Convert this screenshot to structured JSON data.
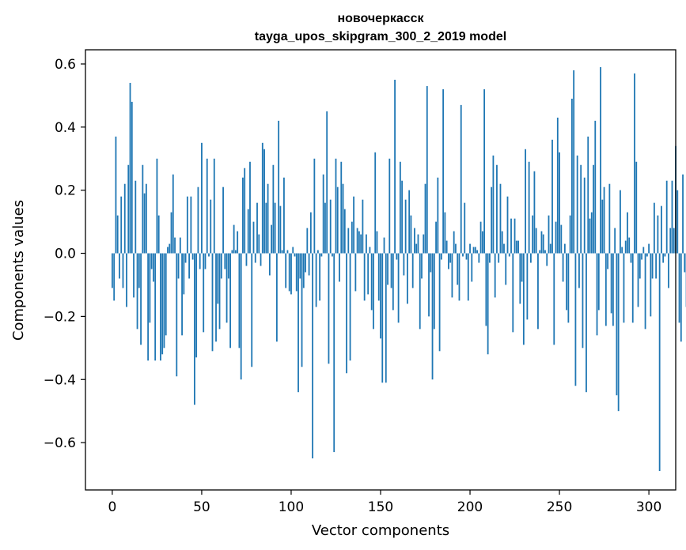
{
  "chart_data": {
    "type": "bar",
    "title_lines": [
      "новочеркасск",
      "tayga_upos_skipgram_300_2_2019 model"
    ],
    "xlabel": "Vector components",
    "ylabel": "Components values",
    "xlim": [
      -15,
      315
    ],
    "ylim": [
      -0.75,
      0.645
    ],
    "x_ticks": [
      0,
      50,
      100,
      150,
      200,
      250,
      300
    ],
    "x_tick_labels": [
      "0",
      "50",
      "100",
      "150",
      "200",
      "250",
      "300"
    ],
    "y_ticks": [
      -0.6,
      -0.4,
      -0.2,
      0.0,
      0.2,
      0.4,
      0.6
    ],
    "y_tick_labels": [
      "−0.6",
      "−0.4",
      "−0.2",
      "0.0",
      "0.2",
      "0.4",
      "0.6"
    ],
    "grid": false,
    "bar_color": "#1f77b4",
    "values": [
      -0.11,
      -0.15,
      0.37,
      0.12,
      -0.08,
      0.18,
      -0.11,
      0.22,
      -0.17,
      0.28,
      0.54,
      0.48,
      -0.14,
      0.23,
      -0.24,
      -0.11,
      -0.29,
      0.28,
      0.19,
      0.22,
      -0.34,
      -0.22,
      -0.05,
      -0.09,
      -0.34,
      0.3,
      0.12,
      -0.34,
      -0.32,
      -0.3,
      -0.26,
      0.02,
      0.03,
      0.13,
      0.25,
      0.05,
      -0.39,
      -0.08,
      0.05,
      -0.26,
      -0.13,
      -0.03,
      0.18,
      -0.08,
      0.18,
      -0.02,
      -0.48,
      -0.33,
      0.21,
      -0.05,
      0.35,
      -0.25,
      -0.05,
      0.3,
      -0.01,
      0.17,
      -0.31,
      0.3,
      -0.28,
      -0.16,
      -0.24,
      -0.08,
      0.21,
      -0.05,
      -0.22,
      -0.08,
      -0.3,
      0.01,
      0.09,
      0.01,
      0.07,
      -0.3,
      -0.4,
      0.24,
      0.27,
      -0.04,
      0.14,
      0.29,
      -0.36,
      0.1,
      -0.03,
      0.16,
      0.06,
      -0.04,
      0.35,
      0.33,
      0.16,
      0.22,
      -0.07,
      0.09,
      0.28,
      0.16,
      -0.28,
      0.42,
      0.15,
      0.01,
      0.24,
      -0.11,
      0.01,
      -0.12,
      -0.13,
      0.02,
      -0.01,
      -0.12,
      -0.44,
      -0.08,
      -0.36,
      -0.11,
      -0.06,
      0.08,
      -0.07,
      0.13,
      -0.65,
      0.3,
      -0.17,
      0.01,
      -0.15,
      -0.01,
      0.25,
      0.16,
      0.45,
      -0.35,
      0.17,
      -0.01,
      -0.63,
      0.3,
      0.21,
      -0.09,
      0.29,
      0.22,
      0.14,
      -0.38,
      0.08,
      -0.34,
      0.1,
      0.18,
      -0.12,
      0.08,
      0.07,
      0.06,
      0.17,
      -0.15,
      0.06,
      -0.13,
      0.02,
      -0.18,
      -0.24,
      0.32,
      0.07,
      -0.15,
      -0.27,
      -0.41,
      0.05,
      -0.41,
      -0.1,
      0.3,
      -0.11,
      -0.18,
      0.55,
      -0.02,
      -0.22,
      0.29,
      0.23,
      -0.07,
      0.17,
      -0.16,
      0.2,
      0.12,
      -0.11,
      0.08,
      0.03,
      0.06,
      -0.24,
      -0.08,
      0.06,
      0.22,
      0.53,
      -0.2,
      -0.06,
      -0.4,
      -0.24,
      0.1,
      0.24,
      -0.31,
      -0.02,
      0.52,
      0.13,
      0.04,
      -0.05,
      -0.03,
      -0.14,
      0.07,
      0.03,
      -0.1,
      -0.15,
      0.47,
      -0.01,
      0.16,
      -0.02,
      -0.15,
      0.03,
      -0.09,
      0.02,
      0.02,
      0.01,
      -0.03,
      0.1,
      0.07,
      0.52,
      -0.23,
      -0.32,
      -0.03,
      0.21,
      0.31,
      -0.14,
      0.28,
      -0.03,
      0.22,
      0.07,
      0.03,
      -0.1,
      0.18,
      -0.01,
      0.11,
      -0.25,
      0.11,
      0.04,
      0.04,
      -0.16,
      -0.09,
      -0.29,
      0.33,
      -0.21,
      0.29,
      -0.03,
      0.12,
      0.26,
      0.08,
      -0.24,
      0.01,
      0.07,
      0.06,
      0.01,
      -0.04,
      0.12,
      0.03,
      0.36,
      -0.29,
      0.1,
      0.43,
      0.32,
      0.09,
      -0.09,
      0.03,
      -0.18,
      -0.22,
      0.12,
      0.49,
      0.58,
      -0.42,
      0.31,
      -0.11,
      0.28,
      -0.3,
      0.24,
      -0.44,
      0.37,
      0.11,
      0.13,
      0.28,
      0.42,
      -0.26,
      -0.18,
      0.59,
      0.17,
      0.21,
      -0.23,
      -0.05,
      0.22,
      -0.19,
      -0.23,
      0.08,
      -0.45,
      -0.5,
      0.2,
      0.02,
      -0.22,
      0.04,
      0.13,
      0.05,
      -0.03,
      -0.22,
      0.57,
      0.29,
      -0.17,
      -0.08,
      -0.02,
      0.02,
      -0.24,
      -0.01,
      0.03,
      -0.2,
      -0.08,
      0.16,
      -0.08,
      0.12,
      -0.69,
      0.15,
      -0.03,
      -0.01,
      0.23,
      -0.11,
      0.08,
      0.23,
      0.08,
      0.34,
      0.2,
      -0.22,
      -0.28,
      0.25,
      -0.06,
      -0.17,
      0.03,
      -0.07,
      0.25,
      0.14
    ]
  }
}
